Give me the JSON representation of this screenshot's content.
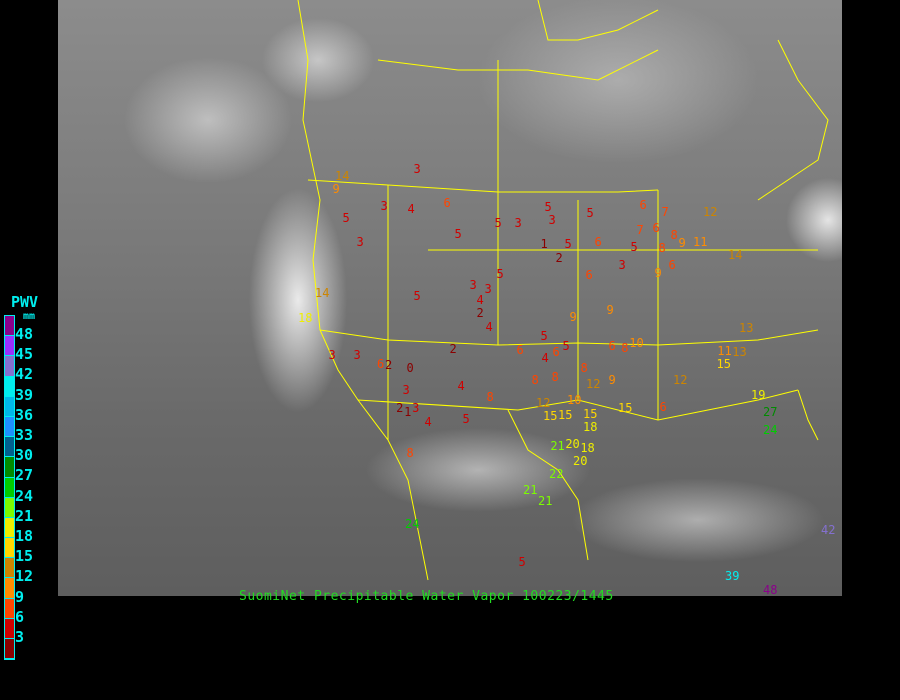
{
  "caption": "SuomiNet Precipitable Water Vapor 100223/1445",
  "legend": {
    "title": "PWV",
    "unit": "mm",
    "ticks": [
      "48",
      "45",
      "42",
      "39",
      "36",
      "33",
      "30",
      "27",
      "24",
      "21",
      "18",
      "15",
      "12",
      "9",
      "6",
      "3"
    ],
    "colors": [
      "#8b008b",
      "#9b30ff",
      "#8470d0",
      "#00eeee",
      "#00b8e8",
      "#1e90ff",
      "#00608f",
      "#008b00",
      "#00cd00",
      "#7cfc00",
      "#eeee00",
      "#ffd700",
      "#cd8500",
      "#ff8c00",
      "#ff4500",
      "#d00000",
      "#8b0000"
    ]
  },
  "map": {
    "background": "GOES visible satellite imagery",
    "boundary_color": "#ffff00"
  },
  "stations": [
    "3",
    "9",
    "14",
    "5",
    "3",
    "4",
    "6",
    "3",
    "5",
    "5",
    "3",
    "5",
    "5",
    "3",
    "1",
    "5",
    "2",
    "6",
    "5",
    "6",
    "7",
    "6",
    "8",
    "9",
    "8",
    "7",
    "11",
    "12",
    "14",
    "9",
    "6",
    "3",
    "5",
    "6",
    "14",
    "18",
    "3",
    "4",
    "2",
    "5",
    "3",
    "4",
    "2",
    "6",
    "5",
    "6",
    "4",
    "5",
    "9",
    "9",
    "12",
    "15",
    "6",
    "8",
    "10",
    "3",
    "3",
    "0",
    "2",
    "6",
    "3",
    "2",
    "3",
    "8",
    "4",
    "1",
    "4",
    "5",
    "8",
    "8",
    "8",
    "10",
    "12",
    "15",
    "15",
    "18",
    "20",
    "21",
    "21",
    "20",
    "22",
    "18",
    "21",
    "5",
    "15",
    "6",
    "12",
    "15",
    "13",
    "11",
    "9",
    "13",
    "19",
    "27",
    "24",
    "8",
    "42",
    "39",
    "48",
    "24"
  ]
}
